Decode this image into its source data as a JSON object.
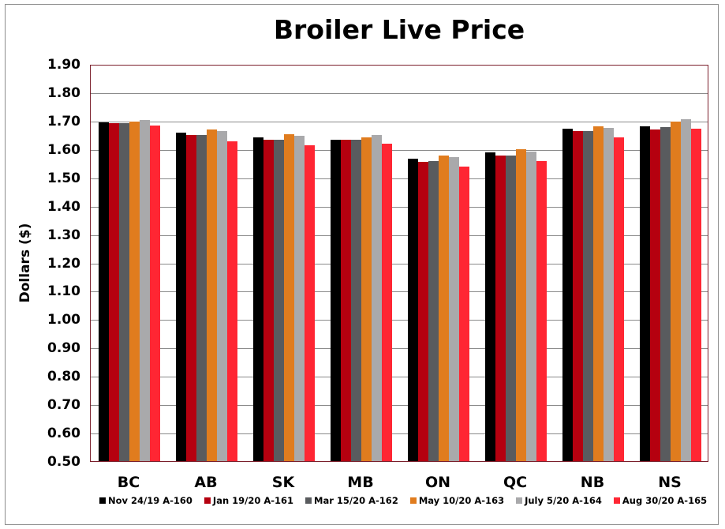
{
  "chart_data": {
    "type": "bar",
    "title": "Broiler Live Price",
    "xlabel": "",
    "ylabel": "Dollars ($)",
    "ylim": [
      0.5,
      1.9
    ],
    "yticks": [
      "0.50",
      "0.60",
      "0.70",
      "0.80",
      "0.90",
      "1.00",
      "1.10",
      "1.20",
      "1.30",
      "1.40",
      "1.50",
      "1.60",
      "1.70",
      "1.80",
      "1.90"
    ],
    "grid": true,
    "legend_position": "bottom",
    "categories": [
      "BC",
      "AB",
      "SK",
      "MB",
      "ON",
      "QC",
      "NB",
      "NS"
    ],
    "series": [
      {
        "name": "Nov 24/19 A-160",
        "color": "#000000",
        "values": [
          1.697,
          1.66,
          1.645,
          1.637,
          1.57,
          1.592,
          1.675,
          1.683
        ]
      },
      {
        "name": "Jan 19/20 A-161",
        "color": "#b5000f",
        "values": [
          1.695,
          1.653,
          1.637,
          1.637,
          1.558,
          1.58,
          1.665,
          1.672
        ]
      },
      {
        "name": "Mar 15/20 A-162",
        "color": "#595b5e",
        "values": [
          1.695,
          1.653,
          1.637,
          1.637,
          1.56,
          1.58,
          1.665,
          1.68
        ]
      },
      {
        "name": "May 10/20 A-163",
        "color": "#e07c1e",
        "values": [
          1.7,
          1.672,
          1.655,
          1.643,
          1.58,
          1.603,
          1.683,
          1.7
        ]
      },
      {
        "name": "July 5/20 A-164",
        "color": "#a9a9ab",
        "values": [
          1.705,
          1.667,
          1.65,
          1.653,
          1.575,
          1.595,
          1.678,
          1.708
        ]
      },
      {
        "name": "Aug 30/20 A-165",
        "color": "#ff2633",
        "values": [
          1.685,
          1.63,
          1.615,
          1.622,
          1.54,
          1.56,
          1.645,
          1.675
        ]
      }
    ]
  },
  "colors": {
    "plot_border": "#7a1f2b",
    "gridline": "#8a8a8a",
    "outer_border": "#8c8c8c"
  }
}
